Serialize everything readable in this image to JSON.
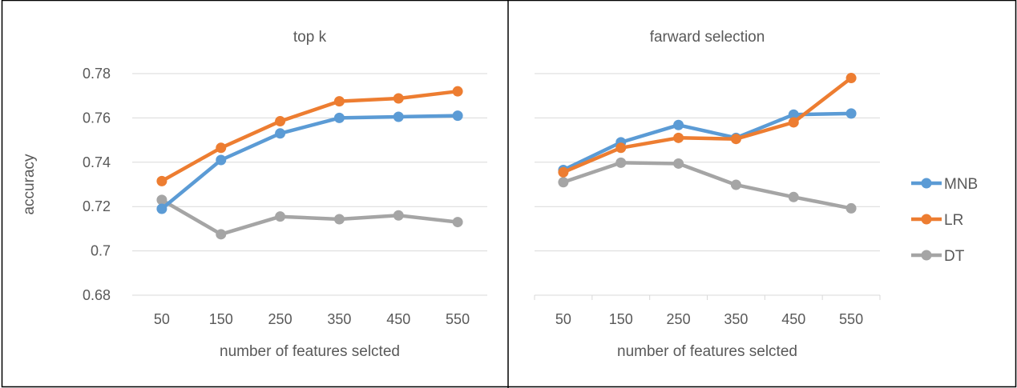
{
  "chart_data": [
    {
      "type": "line",
      "title": "top k",
      "xlabel": "number of features selcted",
      "ylabel": "accuracy",
      "categories": [
        "50",
        "150",
        "250",
        "350",
        "450",
        "550"
      ],
      "ylim": [
        0.68,
        0.78
      ],
      "yticks": [
        "0.68",
        "0.7",
        "0.72",
        "0.74",
        "0.76",
        "0.78"
      ],
      "grid": true,
      "series": [
        {
          "name": "MNB",
          "color": "#5b9bd5",
          "values": [
            0.719,
            0.741,
            0.753,
            0.76,
            0.7605,
            0.761
          ]
        },
        {
          "name": "LR",
          "color": "#ed7d31",
          "values": [
            0.7315,
            0.7465,
            0.7585,
            0.7675,
            0.7688,
            0.772
          ]
        },
        {
          "name": "DT",
          "color": "#a5a5a5",
          "values": [
            0.723,
            0.7075,
            0.7155,
            0.7143,
            0.716,
            0.713
          ]
        }
      ]
    },
    {
      "type": "line",
      "title": "farward selection",
      "xlabel": "number of features selcted",
      "ylabel": "",
      "categories": [
        "50",
        "150",
        "250",
        "350",
        "450",
        "550"
      ],
      "ylim": [
        0.68,
        0.78
      ],
      "grid": true,
      "legend": "right",
      "series": [
        {
          "name": "MNB",
          "color": "#5b9bd5",
          "values": [
            0.7365,
            0.749,
            0.7568,
            0.751,
            0.7615,
            0.762
          ]
        },
        {
          "name": "LR",
          "color": "#ed7d31",
          "values": [
            0.7355,
            0.7465,
            0.751,
            0.7505,
            0.758,
            0.778
          ]
        },
        {
          "name": "DT",
          "color": "#a5a5a5",
          "values": [
            0.731,
            0.7398,
            0.7394,
            0.7298,
            0.7243,
            0.7192
          ]
        }
      ]
    }
  ]
}
